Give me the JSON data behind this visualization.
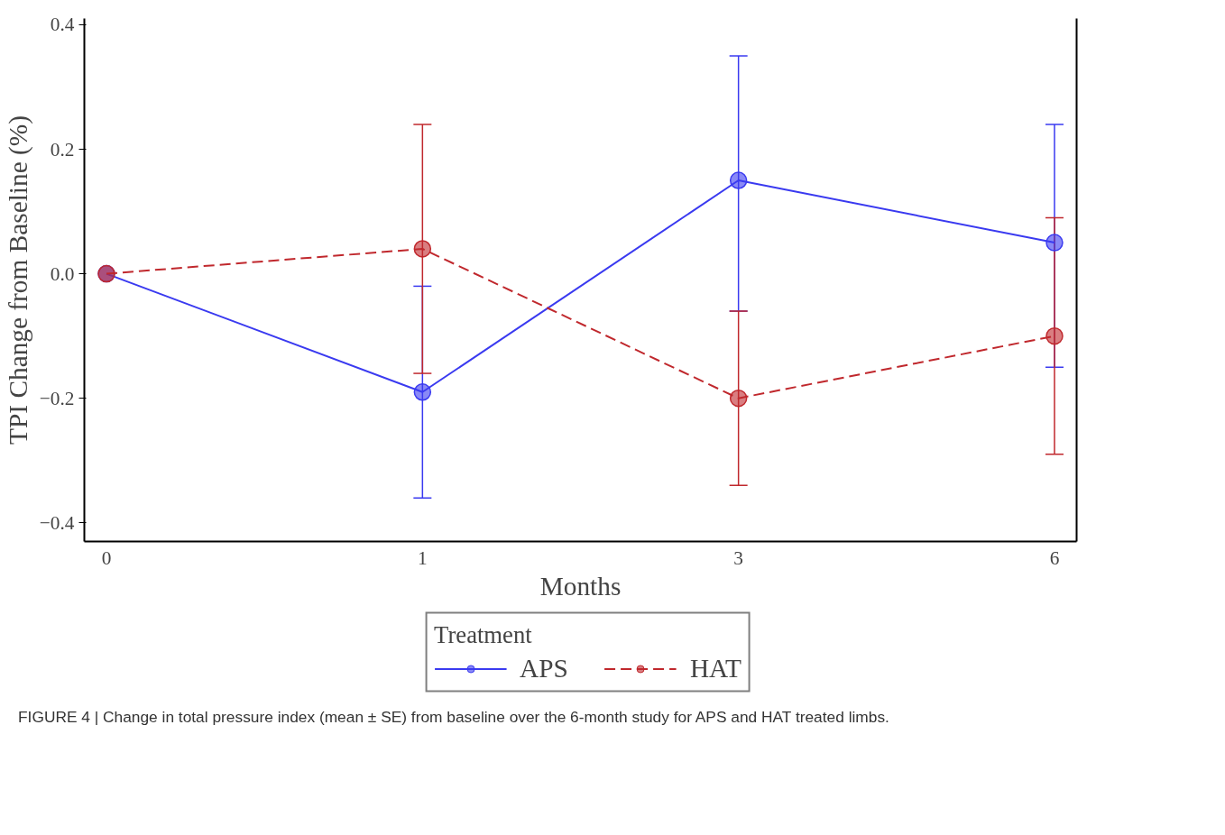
{
  "chart_data": {
    "type": "line",
    "xlabel": "Months",
    "ylabel": "TPI Change from Baseline (%)",
    "legend_title": "Treatment",
    "categories": [
      "0",
      "1",
      "3",
      "6"
    ],
    "ylim": [
      -0.43,
      0.41
    ],
    "yticks": [
      -0.4,
      -0.2,
      {
        "value": 0,
        "label": "0.0"
      },
      0.2,
      0.4
    ],
    "series": [
      {
        "name": "APS",
        "color": "#3a3af0",
        "line_style": "solid",
        "values": [
          0,
          -0.19,
          0.15,
          0.05
        ],
        "errors": [
          null,
          [
            -0.36,
            -0.02
          ],
          [
            -0.06,
            0.35
          ],
          [
            -0.15,
            0.24
          ]
        ]
      },
      {
        "name": "HAT",
        "color": "#c0282d",
        "line_style": "dashed",
        "values": [
          0,
          0.04,
          -0.2,
          -0.1
        ],
        "errors": [
          null,
          [
            -0.16,
            0.24
          ],
          [
            -0.34,
            -0.06
          ],
          [
            -0.29,
            0.09
          ]
        ]
      }
    ],
    "marker": "circle",
    "grid": false,
    "legend": "bottom",
    "annotations": [
      "FIGURE 4 | Change in total pressure index (mean ± SE) from baseline over the 6-month study for APS and HAT treated limbs."
    ]
  }
}
